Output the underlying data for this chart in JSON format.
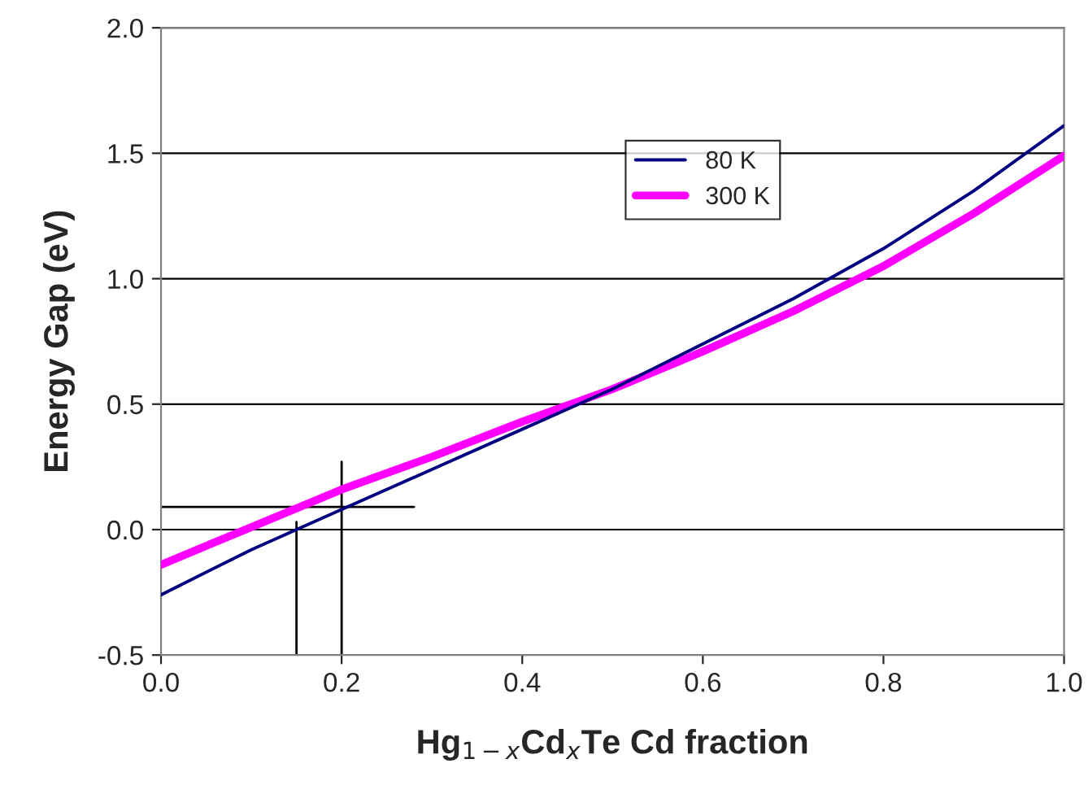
{
  "chart_data": {
    "type": "line",
    "xlabel": "Hg$_{1−x}$Cd$_{x}$Te Cd fraction",
    "ylabel": "Energy Gap (eV)",
    "x": [
      0.0,
      0.1,
      0.2,
      0.3,
      0.4,
      0.5,
      0.6,
      0.7,
      0.8,
      0.9,
      1.0
    ],
    "series": [
      {
        "name": "80 K",
        "color": "#000080",
        "values": [
          -0.26,
          -0.08,
          0.08,
          0.24,
          0.4,
          0.56,
          0.74,
          0.92,
          1.12,
          1.35,
          1.61
        ]
      },
      {
        "name": "300 K",
        "color": "#ff00ff",
        "values": [
          -0.14,
          0.01,
          0.16,
          0.29,
          0.43,
          0.56,
          0.71,
          0.87,
          1.05,
          1.26,
          1.49
        ]
      },
      {
        "color": "#000000",
        "x": [
          0.15,
          0.15
        ],
        "values": [
          -0.5,
          0.03
        ]
      },
      {
        "color": "#000000",
        "x": [
          0.2,
          0.2
        ],
        "values": [
          -0.5,
          0.27
        ]
      },
      {
        "color": "#000000",
        "x": [
          0.0,
          0.28
        ],
        "values": [
          0.09,
          0.09
        ]
      }
    ],
    "xlim": [
      0.0,
      1.0
    ],
    "xticks": [
      {
        "value": 0,
        "label": "0.0"
      },
      0.2,
      0.4,
      0.6,
      0.8,
      {
        "value": 1,
        "label": "1.0"
      }
    ],
    "ylim": [
      -0.5,
      2.0
    ],
    "yticks": [
      -0.5,
      {
        "value": 0,
        "label": "0.0"
      },
      0.5,
      {
        "value": 1,
        "label": "1.0"
      },
      1.5,
      {
        "value": 2,
        "label": "2.0"
      }
    ],
    "grid": "y",
    "legend": "top",
    "marker": "none",
    "line_style": "solid"
  }
}
